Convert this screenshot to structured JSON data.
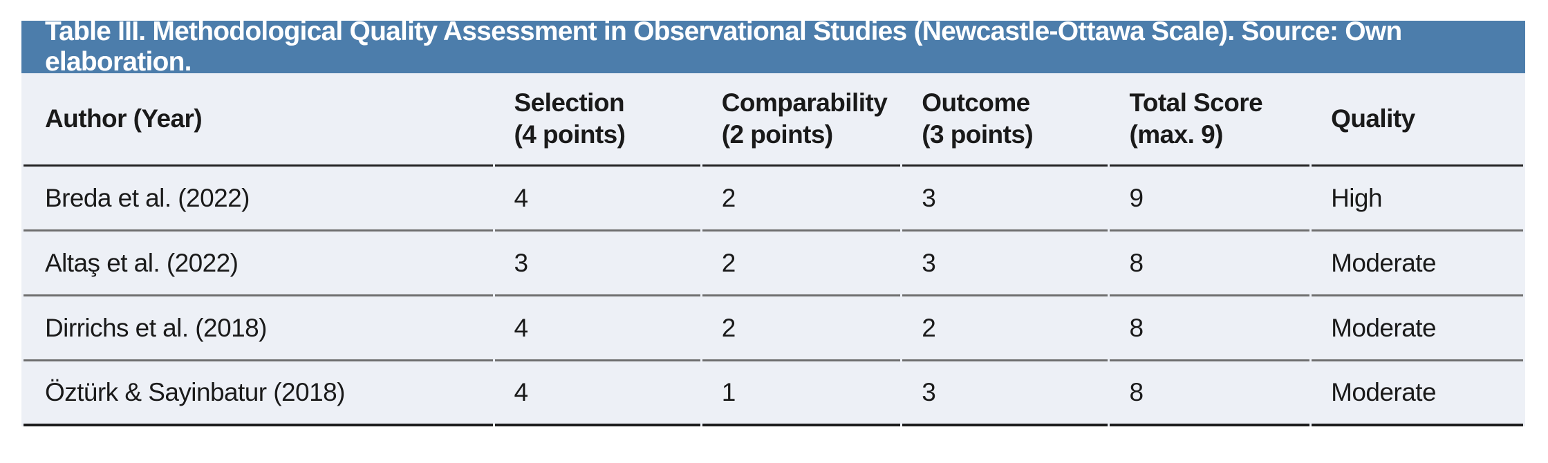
{
  "table": {
    "title": "Table III. Methodological Quality Assessment in Observational Studies (Newcastle-Ottawa Scale). Source: Own elaboration.",
    "columns": [
      {
        "label": "Author (Year)",
        "sub": ""
      },
      {
        "label": "Selection",
        "sub": "(4 points)"
      },
      {
        "label": "Comparability",
        "sub": "(2 points)"
      },
      {
        "label": "Outcome",
        "sub": "(3 points)"
      },
      {
        "label": "Total Score",
        "sub": "(max. 9)"
      },
      {
        "label": "Quality",
        "sub": ""
      }
    ],
    "rows": [
      {
        "author": "Breda et al. (2022)",
        "selection": "4",
        "comparability": "2",
        "outcome": "3",
        "total": "9",
        "quality": "High"
      },
      {
        "author": "Altaş et al. (2022)",
        "selection": "3",
        "comparability": "2",
        "outcome": "3",
        "total": "8",
        "quality": "Moderate"
      },
      {
        "author": "Dirrichs et al. (2018)",
        "selection": "4",
        "comparability": "2",
        "outcome": "2",
        "total": "8",
        "quality": "Moderate"
      },
      {
        "author": "Öztürk & Sayinbatur (2018)",
        "selection": "4",
        "comparability": "1",
        "outcome": "3",
        "total": "8",
        "quality": "Moderate"
      }
    ],
    "colors": {
      "header_bar_bg": "#4C7DAB",
      "header_bar_text": "#FFFFFF",
      "body_bg": "#EDF0F6",
      "row_divider": "#6E6E6E",
      "header_divider": "#222222",
      "bottom_border": "#1C1C1C",
      "text": "#1A1A1A"
    }
  }
}
